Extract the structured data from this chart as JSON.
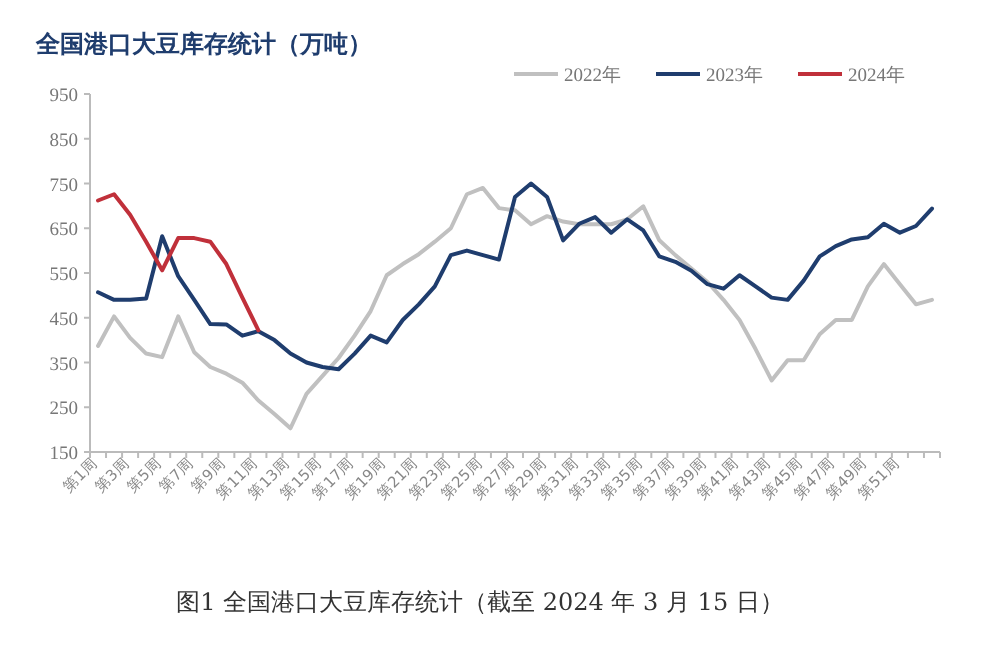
{
  "chart_data": {
    "type": "line",
    "title": "全国港口大豆库存统计（万吨）",
    "categories": [
      "第1周",
      null,
      "第3周",
      null,
      "第5周",
      null,
      "第7周",
      null,
      "第9周",
      null,
      "第11周",
      null,
      "第13周",
      null,
      "第15周",
      null,
      "第17周",
      null,
      "第19周",
      null,
      "第21周",
      null,
      "第23周",
      null,
      "第25周",
      null,
      "第27周",
      null,
      "第29周",
      null,
      "第31周",
      null,
      "第33周",
      null,
      "第35周",
      null,
      "第37周",
      null,
      "第39周",
      null,
      "第41周",
      null,
      "第43周",
      null,
      "第45周",
      null,
      "第47周",
      null,
      "第49周",
      null,
      "第51周",
      null,
      null
    ],
    "series": [
      {
        "name": "2022年",
        "color": "#c0c0c0",
        "values": [
          387,
          453,
          405,
          370,
          362,
          453,
          373,
          340,
          325,
          305,
          265,
          235,
          203,
          280,
          320,
          360,
          410,
          465,
          545,
          570,
          592,
          620,
          650,
          726,
          740,
          695,
          690,
          659,
          677,
          665,
          659,
          659,
          659,
          670,
          699,
          623,
          590,
          560,
          530,
          490,
          445,
          380,
          310,
          355,
          355,
          413,
          445,
          445,
          520,
          570,
          525,
          480,
          490
        ]
      },
      {
        "name": "2023年",
        "color": "#1f3d6e",
        "values": [
          507,
          490,
          490,
          493,
          632,
          543,
          490,
          436,
          435,
          410,
          420,
          400,
          370,
          350,
          340,
          335,
          370,
          410,
          395,
          445,
          480,
          520,
          590,
          600,
          590,
          580,
          720,
          750,
          720,
          623,
          660,
          675,
          640,
          670,
          645,
          587,
          575,
          555,
          525,
          515,
          545,
          520,
          495,
          490,
          533,
          587,
          610,
          625,
          630,
          660,
          640,
          655,
          694
        ]
      },
      {
        "name": "2024年",
        "color": "#c0303a",
        "values": [
          712,
          726,
          680,
          620,
          556,
          628,
          628,
          620,
          570,
          495,
          422,
          null,
          null,
          null,
          null,
          null,
          null,
          null,
          null,
          null,
          null,
          null,
          null,
          null,
          null,
          null,
          null,
          null,
          null,
          null,
          null,
          null,
          null,
          null,
          null,
          null,
          null,
          null,
          null,
          null,
          null,
          null,
          null,
          null,
          null,
          null,
          null,
          null,
          null,
          null,
          null,
          null,
          null
        ]
      }
    ],
    "ylim": [
      150,
      950
    ],
    "yticks": [
      150,
      250,
      350,
      450,
      550,
      650,
      750,
      850,
      950
    ],
    "grid": false,
    "legend": "top right",
    "annotations": [
      "图1 全国港口大豆库存统计（截至 2024 年 3 月 15 日）"
    ]
  }
}
